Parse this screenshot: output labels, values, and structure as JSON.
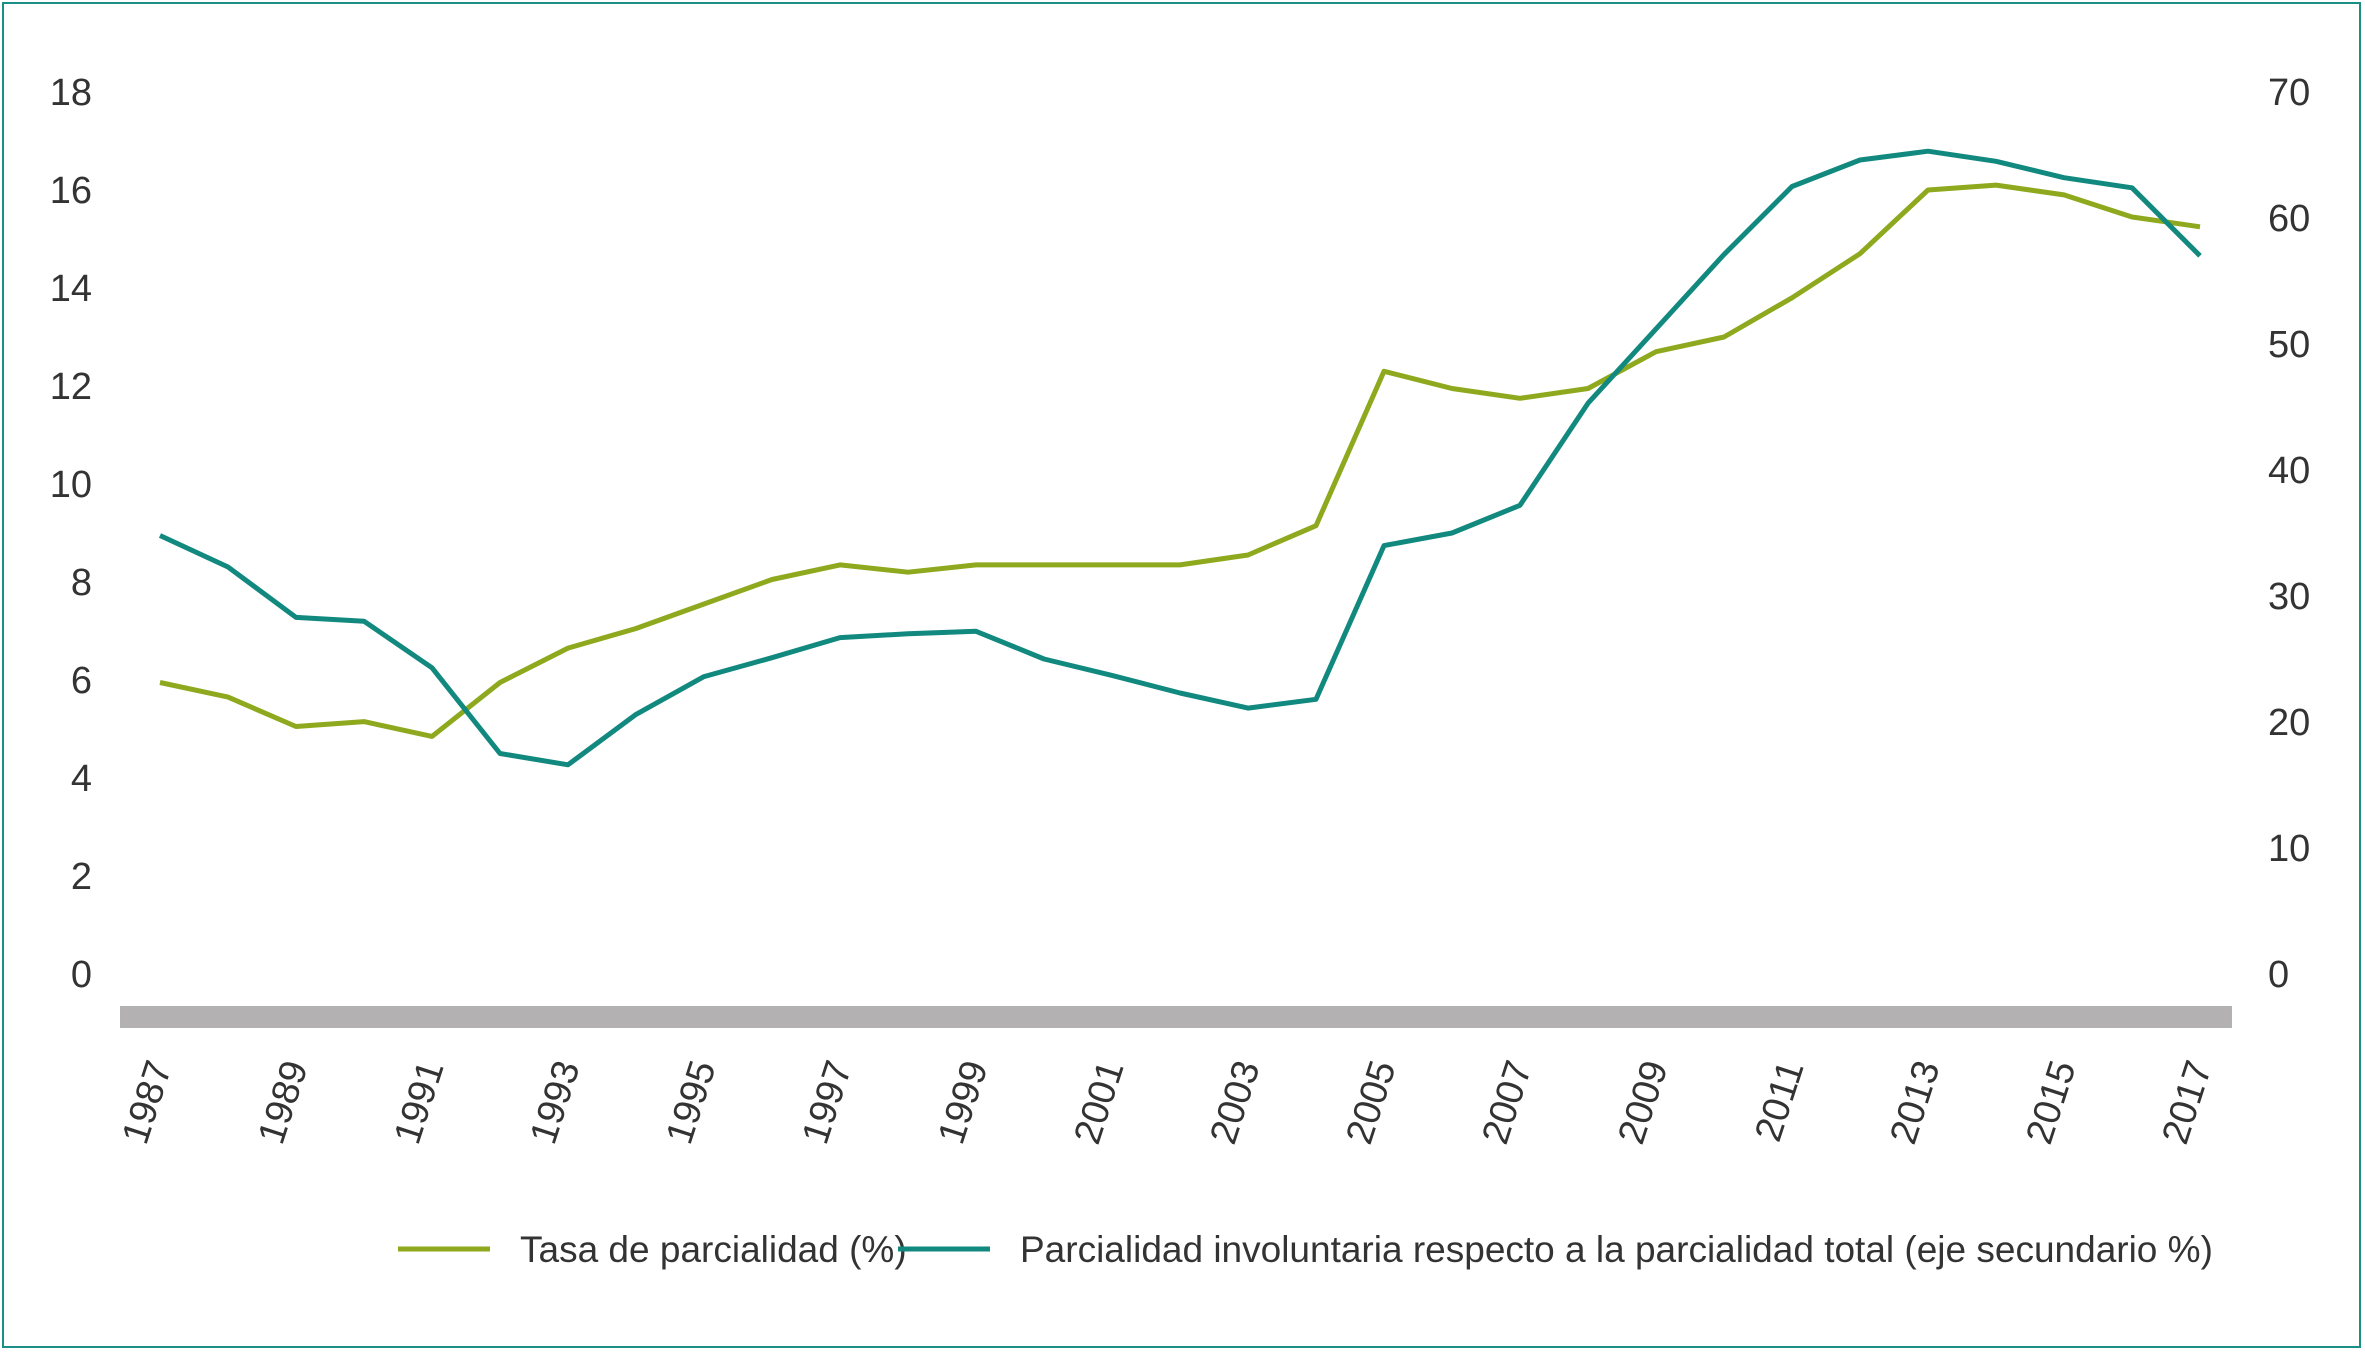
{
  "chart_data": {
    "type": "line",
    "title": "",
    "xlabel": "",
    "ylabel": "",
    "x": [
      1987,
      1988,
      1989,
      1990,
      1991,
      1992,
      1993,
      1994,
      1995,
      1996,
      1997,
      1998,
      1999,
      2000,
      2001,
      2002,
      2003,
      2004,
      2005,
      2006,
      2007,
      2008,
      2009,
      2010,
      2011,
      2012,
      2013,
      2014,
      2015,
      2016,
      2017
    ],
    "x_tick_labels": [
      "1987",
      "1989",
      "1991",
      "1993",
      "1995",
      "1997",
      "1999",
      "2001",
      "2003",
      "2005",
      "2007",
      "2009",
      "2011",
      "2013",
      "2015",
      "2017"
    ],
    "y_left": {
      "range": [
        0,
        18
      ],
      "ticks": [
        "0",
        "2",
        "4",
        "6",
        "8",
        "10",
        "12",
        "14",
        "16",
        "18"
      ]
    },
    "y_right": {
      "range": [
        0,
        70
      ],
      "ticks": [
        "0",
        "10",
        "20",
        "30",
        "40",
        "50",
        "60",
        "70"
      ]
    },
    "grid": false,
    "legend_position": "bottom",
    "series": [
      {
        "name": "Tasa de parcialidad (%)",
        "axis": "left",
        "color": "#8ea91d",
        "values": [
          5.95,
          5.65,
          5.05,
          5.15,
          4.85,
          5.95,
          6.65,
          7.05,
          7.55,
          8.05,
          8.35,
          8.2,
          8.35,
          8.35,
          8.35,
          8.35,
          8.55,
          9.15,
          12.3,
          11.95,
          11.75,
          11.95,
          12.7,
          13.0,
          13.8,
          14.7,
          16.0,
          16.1,
          15.9,
          15.45,
          15.25
        ]
      },
      {
        "name": "Parcialidad involuntaria respecto a la parcialidad total (eje secundario %)",
        "axis": "right",
        "color": "#12897f",
        "values": [
          34.8,
          32.3,
          28.3,
          28.0,
          24.3,
          17.5,
          16.6,
          20.6,
          23.6,
          25.1,
          26.7,
          27.0,
          27.2,
          25.0,
          23.7,
          22.3,
          21.1,
          21.8,
          34.0,
          35.0,
          37.2,
          45.3,
          51.2,
          57.1,
          62.5,
          64.6,
          65.3,
          64.5,
          63.2,
          62.4,
          57.0
        ]
      }
    ]
  }
}
